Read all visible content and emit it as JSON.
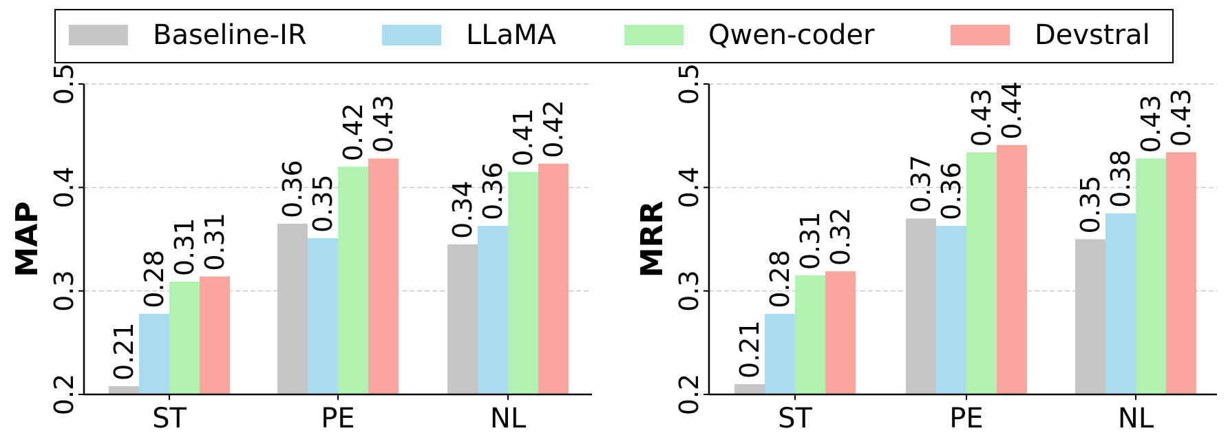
{
  "legend": {
    "placement": "top-center",
    "items": [
      {
        "label": "Baseline-IR",
        "color": "#c6c6c6"
      },
      {
        "label": "LLaMA",
        "color": "#aadcf0"
      },
      {
        "label": "Qwen-coder",
        "color": "#b0f2b0"
      },
      {
        "label": "Devstral",
        "color": "#f8a69e"
      }
    ]
  },
  "chart_data": [
    {
      "type": "bar",
      "title": "",
      "xlabel": "",
      "ylabel": "MAP",
      "ylim": [
        0.2,
        0.5
      ],
      "yticks": [
        "0.2",
        "0.3",
        "0.4",
        "0.5"
      ],
      "grid": "y-dashed",
      "categories": [
        "ST",
        "PE",
        "NL"
      ],
      "series": [
        {
          "name": "Baseline-IR",
          "values": [
            0.208,
            0.365,
            0.345
          ],
          "labels": [
            "0.21",
            "0.36",
            "0.34"
          ]
        },
        {
          "name": "LLaMA",
          "values": [
            0.278,
            0.351,
            0.363
          ],
          "labels": [
            "0.28",
            "0.35",
            "0.36"
          ]
        },
        {
          "name": "Qwen-coder",
          "values": [
            0.309,
            0.42,
            0.415
          ],
          "labels": [
            "0.31",
            "0.42",
            "0.41"
          ]
        },
        {
          "name": "Devstral",
          "values": [
            0.314,
            0.428,
            0.423
          ],
          "labels": [
            "0.31",
            "0.43",
            "0.42"
          ]
        }
      ]
    },
    {
      "type": "bar",
      "title": "",
      "xlabel": "",
      "ylabel": "MRR",
      "ylim": [
        0.2,
        0.5
      ],
      "yticks": [
        "0.2",
        "0.3",
        "0.4",
        "0.5"
      ],
      "grid": "y-dashed",
      "categories": [
        "ST",
        "PE",
        "NL"
      ],
      "series": [
        {
          "name": "Baseline-IR",
          "values": [
            0.21,
            0.37,
            0.35
          ],
          "labels": [
            "0.21",
            "0.37",
            "0.35"
          ]
        },
        {
          "name": "LLaMA",
          "values": [
            0.278,
            0.363,
            0.375
          ],
          "labels": [
            "0.28",
            "0.36",
            "0.38"
          ]
        },
        {
          "name": "Qwen-coder",
          "values": [
            0.315,
            0.434,
            0.428
          ],
          "labels": [
            "0.31",
            "0.43",
            "0.43"
          ]
        },
        {
          "name": "Devstral",
          "values": [
            0.319,
            0.441,
            0.434
          ],
          "labels": [
            "0.32",
            "0.44",
            "0.43"
          ]
        }
      ]
    }
  ]
}
